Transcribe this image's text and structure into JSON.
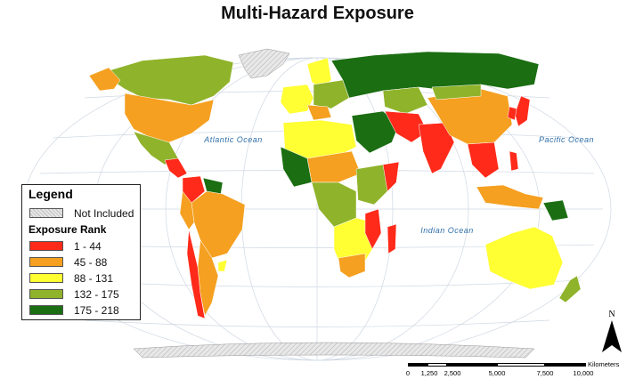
{
  "title": "Multi-Hazard Exposure",
  "oceans": {
    "atlantic": "Atlantic Ocean",
    "pacific": "Pacific Ocean",
    "indian": "Indian Ocean"
  },
  "legend": {
    "title": "Legend",
    "not_included_label": "Not Included",
    "subtitle": "Exposure Rank",
    "classes": [
      {
        "label": "1 - 44",
        "color": "#ff2a1a"
      },
      {
        "label": "45 - 88",
        "color": "#f5a020"
      },
      {
        "label": "88 - 131",
        "color": "#ffff33"
      },
      {
        "label": "132 - 175",
        "color": "#8fb32a"
      },
      {
        "label": "175 - 218",
        "color": "#1b6e12"
      }
    ]
  },
  "north_label": "N",
  "scale": {
    "unit": "Kilometers",
    "ticks": [
      "0",
      "1,250",
      "2,500",
      "5,000",
      "7,500",
      "10,000"
    ]
  },
  "colors": {
    "rank_1_44": "#ff2a1a",
    "rank_45_88": "#f5a020",
    "rank_88_131": "#ffff33",
    "rank_132_175": "#8fb32a",
    "rank_175_218": "#1b6e12",
    "not_included": "#d9d9d9",
    "ocean_label": "#2f6fa8",
    "graticule": "#cfd8e3"
  }
}
